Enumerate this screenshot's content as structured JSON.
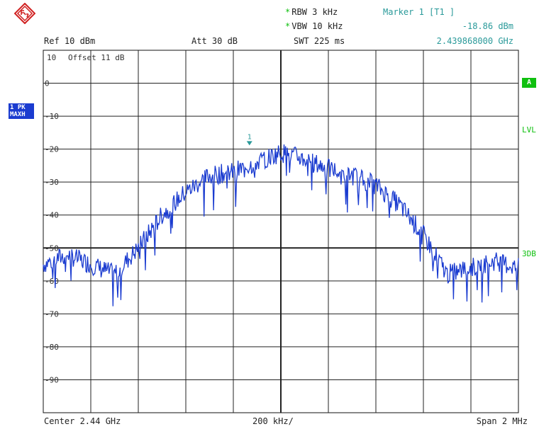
{
  "header": {
    "rbw": "RBW 3 kHz",
    "vbw": "VBW 10 kHz",
    "swt": "SWT 225 ms",
    "ref": "Ref  10 dBm",
    "att": "Att  30 dB",
    "marker_title": "Marker 1 [T1 ]",
    "marker_level": "-18.86 dBm",
    "marker_freq": "2.439868000 GHz"
  },
  "left_tags": {
    "trace_line1": "1 PK",
    "trace_line2": "MAXH"
  },
  "right_tags": {
    "a": "A",
    "lvl": "LVL",
    "three_db": "3DB"
  },
  "grid_annotation": {
    "offset_prefix": "10",
    "offset_text": "Offset  11 dB"
  },
  "footer": {
    "center": "Center 2.44 GHz",
    "div": "200 kHz/",
    "span": "Span 2 MHz"
  },
  "colors": {
    "trace": "#1b3cd0",
    "marker": "#2a9a9a",
    "accent": "#10c010"
  },
  "chart_data": {
    "type": "line",
    "ylim": [
      -100,
      10
    ],
    "xlim_MHz": [
      2439.0,
      2441.0
    ],
    "y_tick_labels": [
      "0",
      "-10",
      "-20",
      "-30",
      "-40",
      "-50",
      "-60",
      "-70",
      "-80",
      "-90"
    ],
    "series": [
      {
        "x": [
          2439.0,
          2439.1,
          2439.2,
          2439.3,
          2439.4,
          2439.5,
          2439.6,
          2439.7,
          2439.8,
          2439.9,
          2440.0,
          2440.1,
          2440.2,
          2440.3,
          2440.4,
          2440.5,
          2440.6,
          2440.7,
          2440.8,
          2440.9,
          2441.0
        ],
        "values": [
          -55,
          -52,
          -55,
          -58,
          -50,
          -40,
          -33,
          -28,
          -27,
          -24,
          -21,
          -23,
          -26,
          -28,
          -31,
          -37,
          -46,
          -58,
          -56,
          -54,
          -56
        ]
      }
    ],
    "marker": {
      "label": "1",
      "x": 2439.868,
      "y": -18.86
    }
  }
}
